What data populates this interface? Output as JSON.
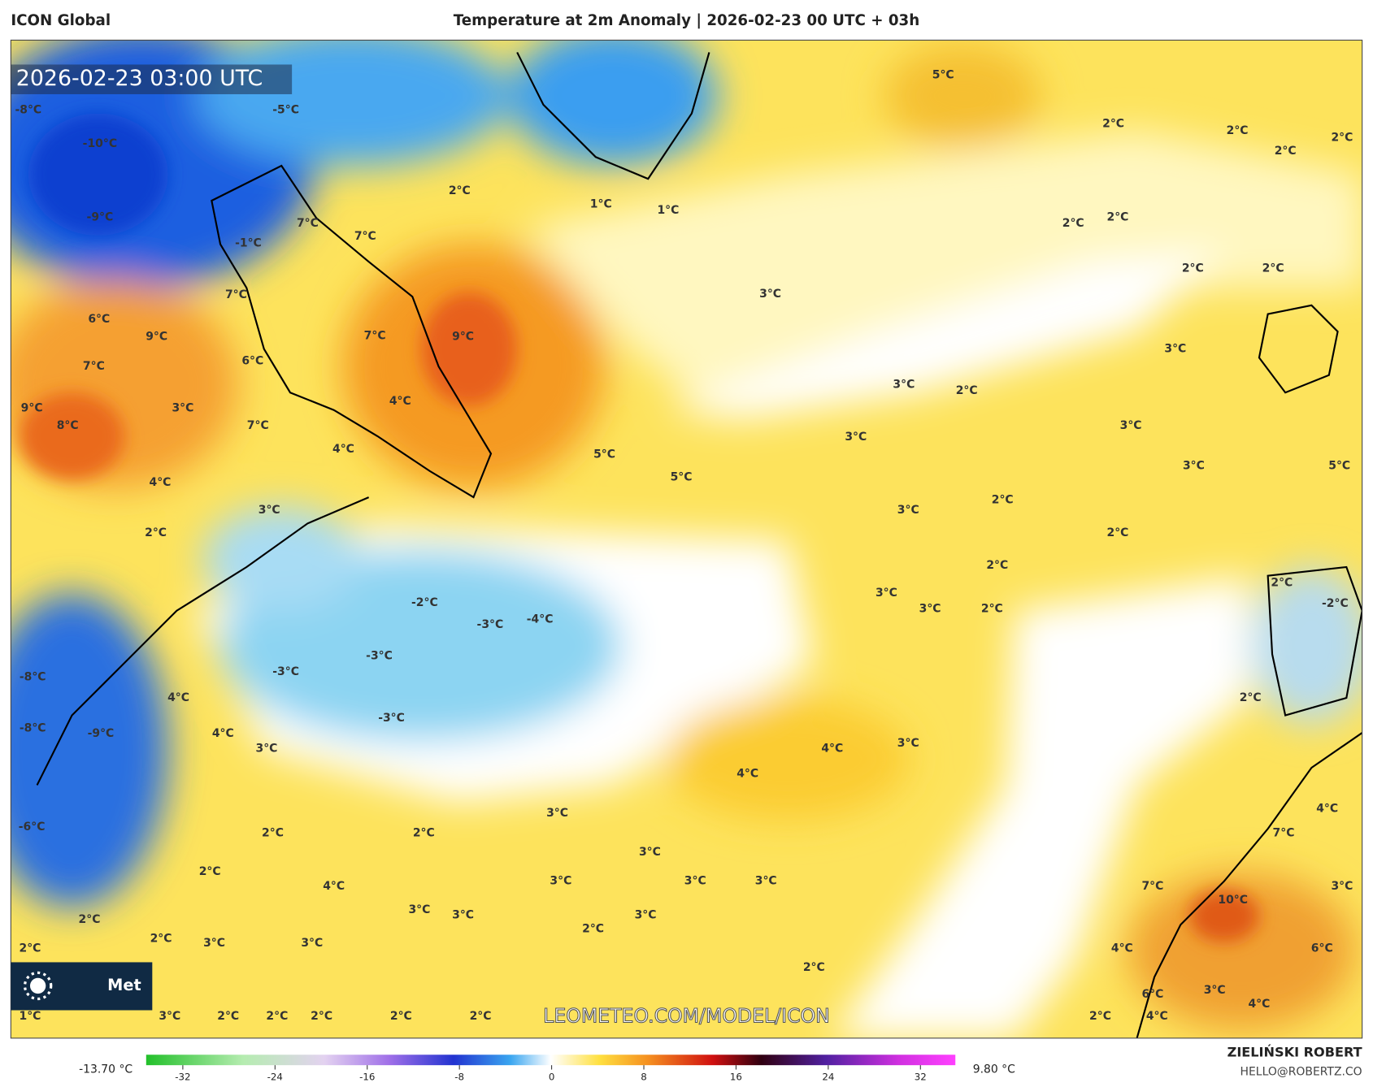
{
  "header": {
    "left": "ICON Global",
    "title": "Temperature at 2m Anomaly | 2026-02-23 00 UTC + 03h"
  },
  "map": {
    "timestamp": "2026-02-23 03:00 UTC",
    "watermark": "LEOMETEO.COM/MODEL/ICON",
    "labels": [
      "-8°C",
      "-5°C",
      "-10°C",
      "-9°C",
      "-1°C",
      "2°C",
      "1°C",
      "1°C",
      "5°C",
      "2°C",
      "2°C",
      "2°C",
      "2°C",
      "2°C",
      "2°C",
      "2°C",
      "2°C",
      "3°C",
      "3°C",
      "3°C",
      "2°C",
      "3°C",
      "3°C",
      "3°C",
      "5°C",
      "7°C",
      "7°C",
      "7°C",
      "6°C",
      "9°C",
      "7°C",
      "6°C",
      "3°C",
      "7°C",
      "9°C",
      "4°C",
      "9°C",
      "8°C",
      "7°C",
      "4°C",
      "5°C",
      "5°C",
      "4°C",
      "3°C",
      "2°C",
      "2°C",
      "3°C",
      "2°C",
      "2°C",
      "3°C",
      "3°C",
      "2°C",
      "-2°C",
      "-3°C",
      "-4°C",
      "-3°C",
      "-3°C",
      "-3°C",
      "-8°C",
      "-8°C",
      "-9°C",
      "4°C",
      "4°C",
      "3°C",
      "-6°C",
      "4°C",
      "3°C",
      "4°C",
      "2°C",
      "3°C",
      "2°C",
      "2°C",
      "3°C",
      "2°C",
      "4°C",
      "3°C",
      "3°C",
      "3°C",
      "3°C",
      "3°C",
      "2°C",
      "3°C",
      "2°C",
      "2°C",
      "3°C",
      "3°C",
      "2°C",
      "2°C",
      "1°C",
      "3°C",
      "2°C",
      "2°C",
      "2°C",
      "2°C",
      "2°C",
      "2°C",
      "4°C",
      "10°C",
      "7°C",
      "4°C",
      "3°C",
      "6°C",
      "6°C",
      "3°C",
      "4°C",
      "4°C",
      "7°C",
      "2°C",
      "-2°C"
    ]
  },
  "logo": {
    "text": "Met"
  },
  "colorbar": {
    "min_label": "-13.70 °C",
    "max_label": "9.80 °C",
    "ticks": [
      -32,
      -24,
      -16,
      -8,
      0,
      8,
      16,
      24,
      32
    ]
  },
  "footer": {
    "author": "ZIELIŃSKI ROBERT",
    "email": "HELLO@ROBERTZ.CO"
  }
}
